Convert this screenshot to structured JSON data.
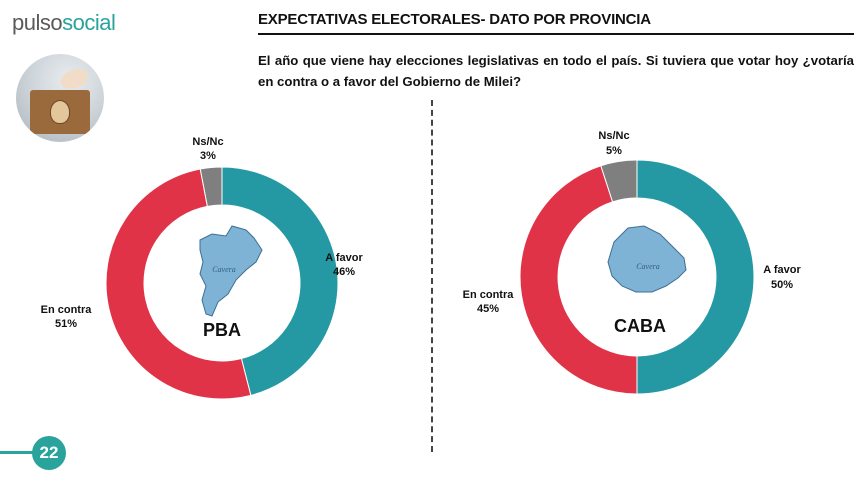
{
  "header": {
    "logo_word1": "pulso",
    "logo_word2": "social",
    "title": "EXPECTATIVAS ELECTORALES- DATO POR PROVINCIA",
    "question": "El año que viene hay elecciones legislativas en todo el país. Si tuviera que votar hoy ¿votaría en contra o a favor del Gobierno de Milei?"
  },
  "footer": {
    "page_number": "22"
  },
  "colors": {
    "a_favor": "#2499a3",
    "en_contra": "#e03348",
    "ns_nc": "#7f7f7f",
    "accent": "#2aa39c"
  },
  "chart_data": [
    {
      "type": "pie",
      "variant": "donut",
      "center_label": "PBA",
      "map_label": "Cavera",
      "categories": [
        "A favor",
        "En contra",
        "Ns/Nc"
      ],
      "values": [
        46,
        51,
        3
      ],
      "value_labels": [
        "46%",
        "51%",
        "3%"
      ],
      "colors": [
        "#2499a3",
        "#e03348",
        "#7f7f7f"
      ]
    },
    {
      "type": "pie",
      "variant": "donut",
      "center_label": "CABA",
      "map_label": "Cavera",
      "categories": [
        "A favor",
        "En contra",
        "Ns/Nc"
      ],
      "values": [
        50,
        45,
        5
      ],
      "value_labels": [
        "50%",
        "45%",
        "5%"
      ],
      "colors": [
        "#2499a3",
        "#e03348",
        "#7f7f7f"
      ]
    }
  ]
}
